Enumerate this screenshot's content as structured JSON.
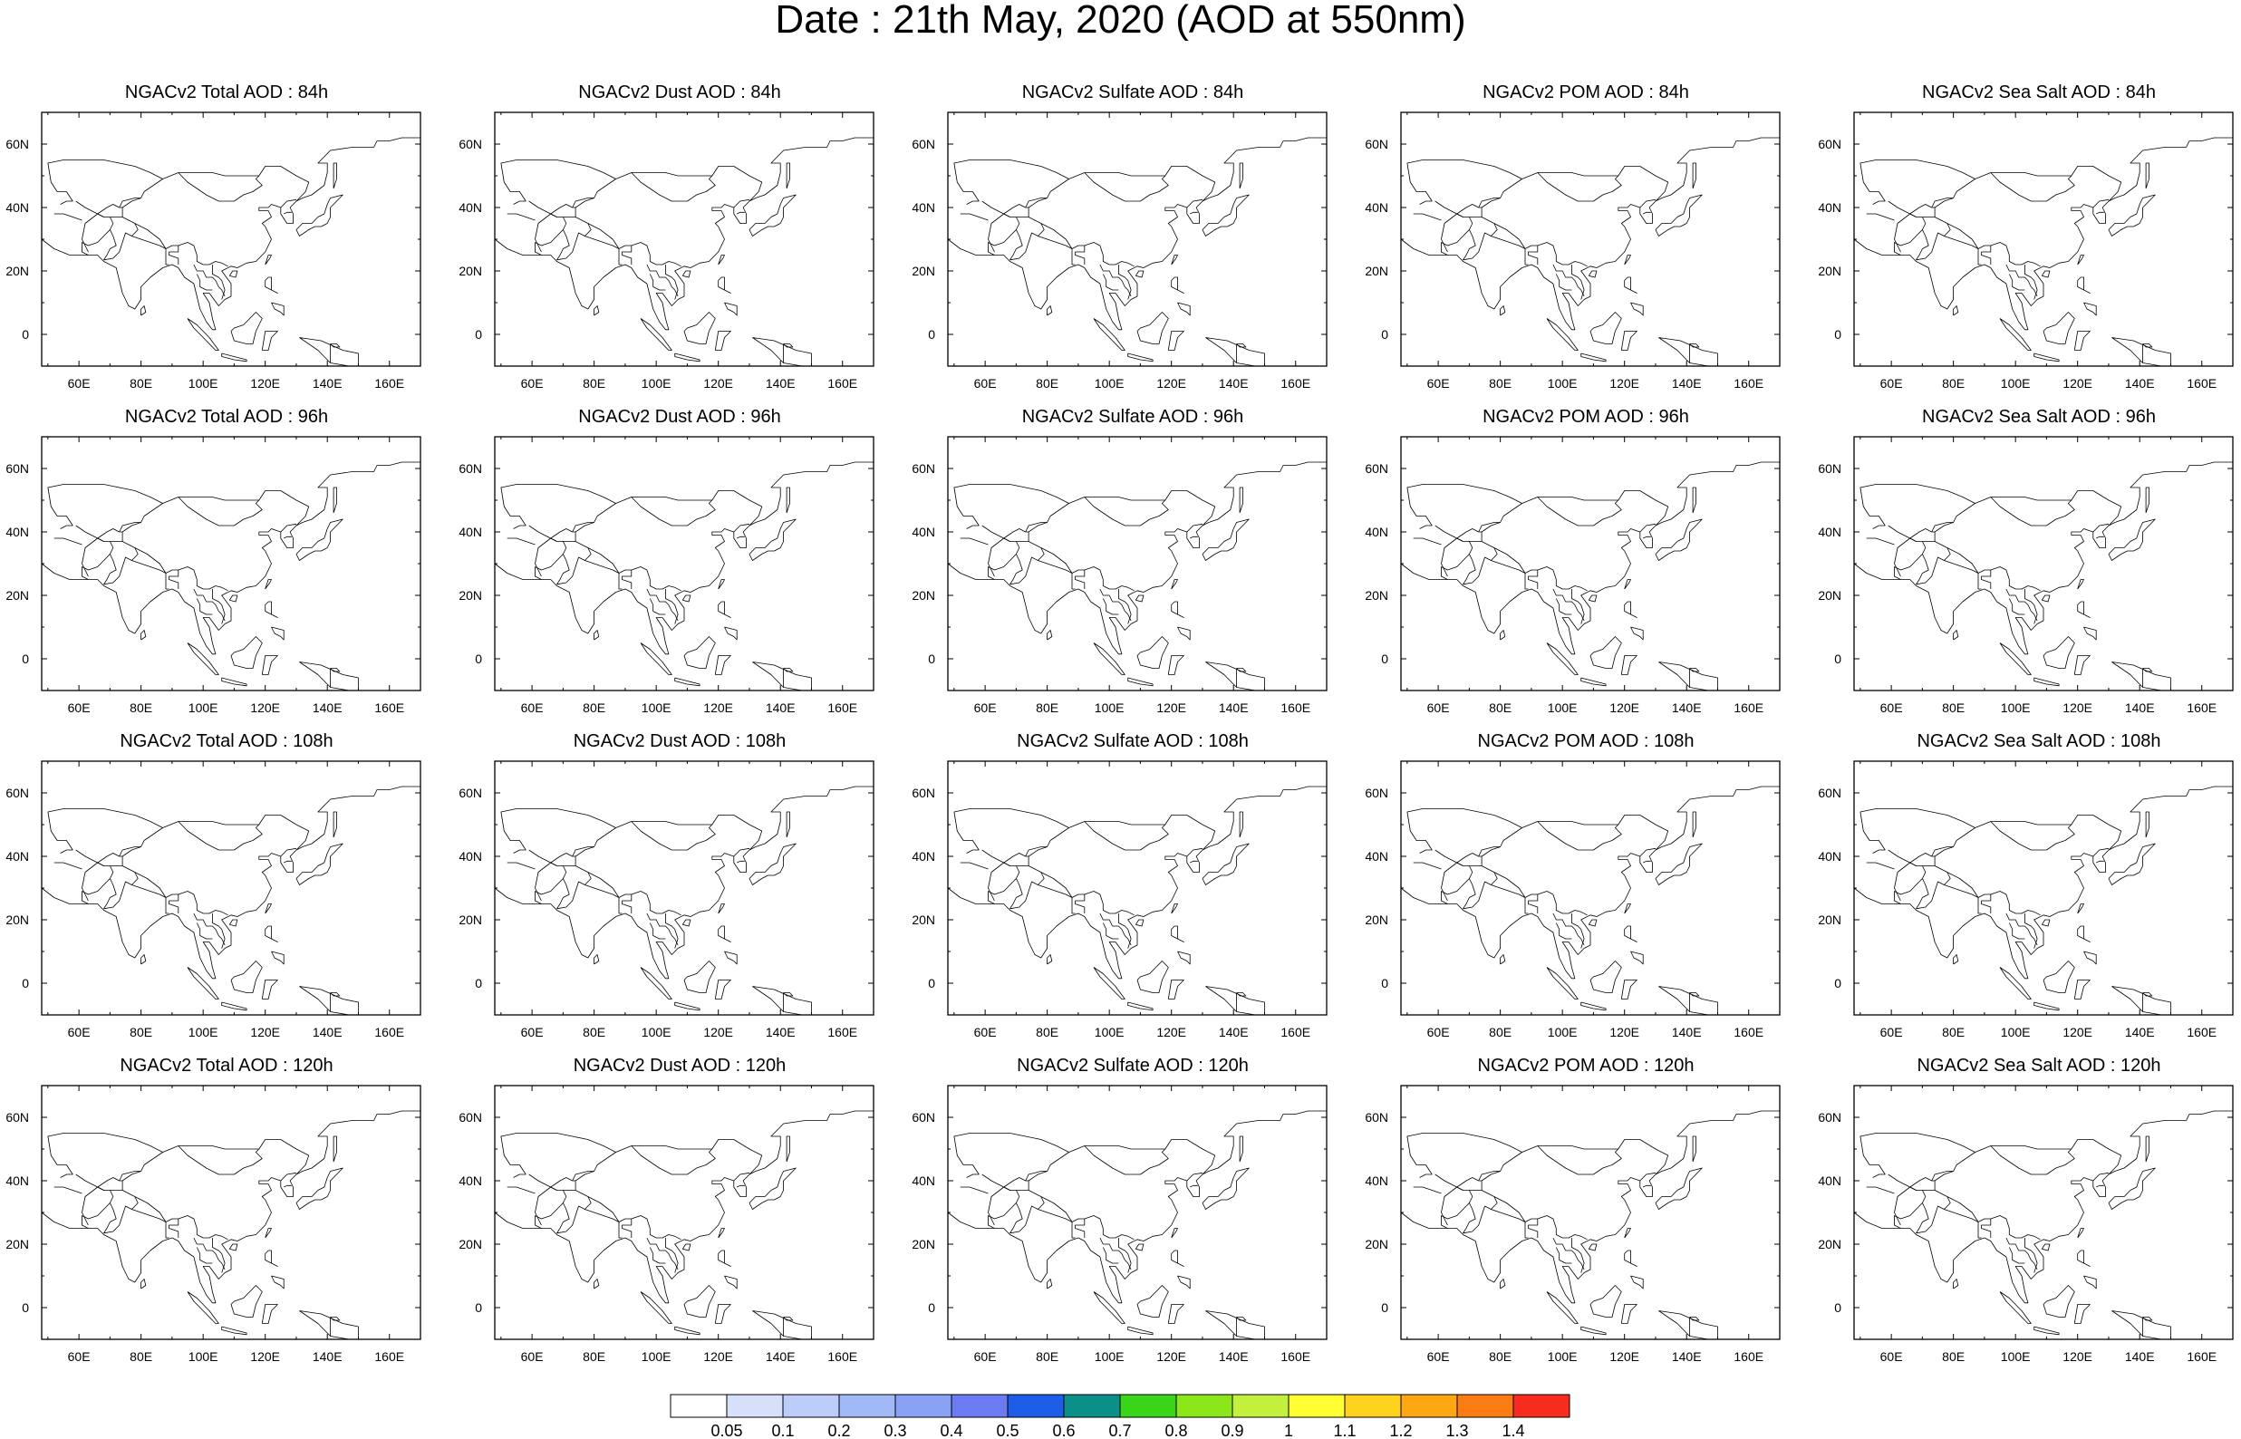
{
  "title": "Date : 21th May, 2020 (AOD at 550nm)",
  "lon_labels": [
    "60E",
    "80E",
    "100E",
    "120E",
    "140E",
    "160E"
  ],
  "lon_values": [
    60,
    80,
    100,
    120,
    140,
    160
  ],
  "lat_labels": [
    "60N",
    "40N",
    "20N",
    "0"
  ],
  "lat_values": [
    60,
    40,
    20,
    0
  ],
  "lon_range": [
    48,
    170
  ],
  "lat_range": [
    -10,
    70
  ],
  "colorbar": {
    "levels": [
      "0.05",
      "0.1",
      "0.2",
      "0.3",
      "0.4",
      "0.5",
      "0.6",
      "0.7",
      "0.8",
      "0.9",
      "1",
      "1.1",
      "1.2",
      "1.3",
      "1.4"
    ],
    "colors": [
      "#ffffff",
      "#d7e0fb",
      "#bccdfa",
      "#a2b9f8",
      "#8aa2f6",
      "#6b7cf2",
      "#1e5de8",
      "#0a9088",
      "#39d51b",
      "#8be61a",
      "#c3f03c",
      "#ffff32",
      "#ffd21d",
      "#fea712",
      "#fb7c12",
      "#f72b1e"
    ]
  },
  "species": [
    "Total",
    "Dust",
    "Sulfate",
    "POM",
    "Sea Salt"
  ],
  "hours": [
    "84h",
    "96h",
    "108h",
    "120h"
  ],
  "panels": [
    [
      "NGACv2 Total AOD : 84h",
      "NGACv2 Dust AOD : 84h",
      "NGACv2 Sulfate AOD : 84h",
      "NGACv2 POM AOD : 84h",
      "NGACv2 Sea Salt AOD : 84h"
    ],
    [
      "NGACv2 Total AOD : 96h",
      "NGACv2 Dust AOD : 96h",
      "NGACv2 Sulfate AOD : 96h",
      "NGACv2 POM AOD : 96h",
      "NGACv2 Sea Salt AOD : 96h"
    ],
    [
      "NGACv2 Total AOD : 108h",
      "NGACv2 Dust AOD : 108h",
      "NGACv2 Sulfate AOD : 108h",
      "NGACv2 POM AOD : 108h",
      "NGACv2 Sea Salt AOD : 108h"
    ],
    [
      "NGACv2 Total AOD : 120h",
      "NGACv2 Dust AOD : 120h",
      "NGACv2 Sulfate AOD : 120h",
      "NGACv2 POM AOD : 120h",
      "NGACv2 Sea Salt  AOD : 120h"
    ]
  ]
}
